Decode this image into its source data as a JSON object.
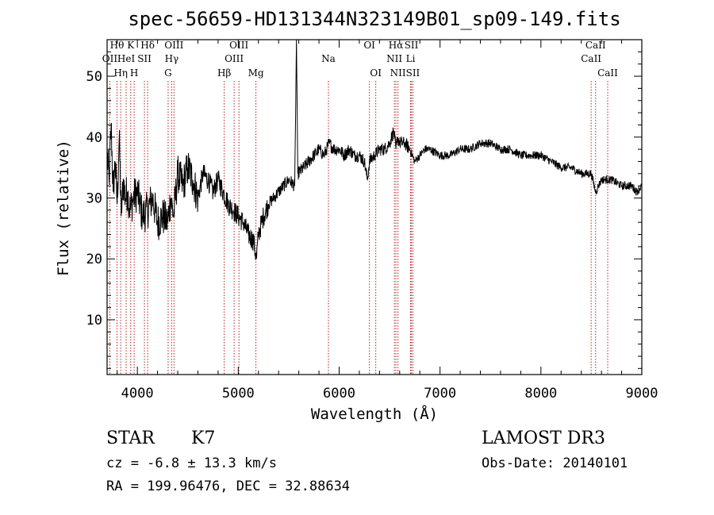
{
  "chart_data": {
    "type": "line",
    "title": "spec-56659-HD131344N323149B01_sp09-149.fits",
    "xlabel": "Wavelength (Å)",
    "ylabel": "Flux (relative)",
    "xlim": [
      3700,
      9000
    ],
    "ylim": [
      1,
      56
    ],
    "xticks": [
      4000,
      5000,
      6000,
      7000,
      8000,
      9000
    ],
    "yticks": [
      10,
      20,
      30,
      40,
      50
    ],
    "series": [
      {
        "name": "flux",
        "x": [
          3700,
          3720,
          3740,
          3760,
          3780,
          3800,
          3820,
          3840,
          3860,
          3880,
          3900,
          3930,
          3960,
          4000,
          4050,
          4100,
          4150,
          4200,
          4250,
          4300,
          4330,
          4360,
          4400,
          4450,
          4500,
          4550,
          4600,
          4650,
          4700,
          4750,
          4800,
          4850,
          4900,
          4950,
          5000,
          5050,
          5100,
          5150,
          5180,
          5200,
          5250,
          5300,
          5400,
          5500,
          5560,
          5577,
          5590,
          5650,
          5700,
          5750,
          5800,
          5850,
          5900,
          5950,
          6000,
          6050,
          6100,
          6150,
          6200,
          6250,
          6280,
          6300,
          6350,
          6400,
          6450,
          6500,
          6540,
          6563,
          6580,
          6600,
          6650,
          6700,
          6750,
          6800,
          6850,
          6900,
          7000,
          7100,
          7200,
          7300,
          7400,
          7500,
          7600,
          7700,
          7800,
          7900,
          8000,
          8100,
          8200,
          8300,
          8400,
          8500,
          8542,
          8600,
          8662,
          8700,
          8800,
          8900,
          8950,
          9000
        ],
        "y": [
          37,
          33,
          42,
          31,
          36,
          29,
          40,
          27,
          33,
          30,
          31,
          28,
          30,
          31,
          27,
          28,
          30,
          26,
          27,
          26,
          30,
          27,
          34,
          32,
          35,
          33,
          30,
          34,
          33,
          31,
          33,
          31,
          29,
          28,
          27,
          26,
          24,
          23,
          20,
          24,
          27,
          29,
          31,
          33,
          32,
          56,
          34,
          35,
          36,
          37,
          38,
          37,
          39,
          38,
          38,
          37,
          38,
          37,
          37,
          36,
          33,
          36,
          37,
          38,
          38,
          39,
          41,
          38,
          40,
          39,
          39,
          38,
          36,
          37,
          38,
          38,
          37,
          37,
          38,
          38,
          39,
          39,
          38,
          38,
          37,
          37,
          37,
          36,
          35,
          35,
          34,
          34,
          31,
          33,
          33,
          33,
          32,
          32,
          31,
          32
        ]
      }
    ],
    "emission_lines": [
      {
        "label": "OII",
        "x": 3727,
        "row": 2
      },
      {
        "label": "Hθ",
        "x": 3798,
        "row": 1
      },
      {
        "label": "Hη",
        "x": 3835,
        "row": 3
      },
      {
        "label": "HeI",
        "x": 3889,
        "row": 2
      },
      {
        "label": "K",
        "x": 3934,
        "row": 1
      },
      {
        "label": "H",
        "x": 3968,
        "row": 3
      },
      {
        "label": "SII",
        "x": 4070,
        "row": 2
      },
      {
        "label": "Hδ",
        "x": 4102,
        "row": 1
      },
      {
        "label": "G",
        "x": 4305,
        "row": 3
      },
      {
        "label": "Hγ",
        "x": 4340,
        "row": 2
      },
      {
        "label": "OIII",
        "x": 4363,
        "row": 1
      },
      {
        "label": "Hβ",
        "x": 4861,
        "row": 3
      },
      {
        "label": "OIII",
        "x": 4959,
        "row": 2
      },
      {
        "label": "OIII",
        "x": 5007,
        "row": 1
      },
      {
        "label": "Mg",
        "x": 5175,
        "row": 3
      },
      {
        "label": "Na",
        "x": 5894,
        "row": 2
      },
      {
        "label": "OI",
        "x": 6300,
        "row": 1
      },
      {
        "label": "OI",
        "x": 6363,
        "row": 3
      },
      {
        "label": "NII",
        "x": 6548,
        "row": 2
      },
      {
        "label": "Hα",
        "x": 6563,
        "row": 1
      },
      {
        "label": "NII",
        "x": 6583,
        "row": 3
      },
      {
        "label": "SII",
        "x": 6716,
        "row": 1
      },
      {
        "label": "Li",
        "x": 6708,
        "row": 2
      },
      {
        "label": "SII",
        "x": 6731,
        "row": 3
      },
      {
        "label": "CaII",
        "x": 8498,
        "row": 2
      },
      {
        "label": "CaII",
        "x": 8542,
        "row": 1
      },
      {
        "label": "CaII",
        "x": 8662,
        "row": 3
      }
    ]
  },
  "info": {
    "object_class": "STAR",
    "subclass": "K7",
    "survey": "LAMOST DR3",
    "redshift": "cz = -6.8 ± 13.3 km/s",
    "obs_date": "Obs-Date: 20140101",
    "coords": "RA = 199.96476, DEC =  32.88634"
  },
  "colors": {
    "line": "#000000",
    "marker": "#b22222"
  }
}
